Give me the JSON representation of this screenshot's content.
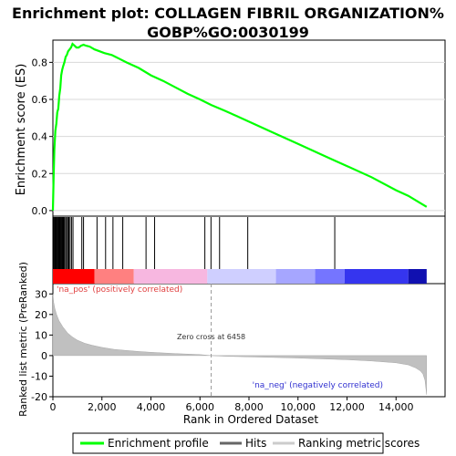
{
  "chart_data": {
    "type": "line",
    "title": "Enrichment plot: COLLAGEN FIBRIL ORGANIZATION%GOBP%GO:0030199",
    "title_lines": [
      "Enrichment plot: COLLAGEN FIBRIL ORGANIZATION%",
      "GOBP%GO:0030199"
    ],
    "panels": {
      "enrichment": {
        "ylabel": "Enrichment score (ES)",
        "ylim": [
          -0.03,
          0.92
        ],
        "yticks": [
          0.0,
          0.2,
          0.4,
          0.6,
          0.8
        ],
        "ytick_labels": [
          "0.0",
          "0.2",
          "0.4",
          "0.6",
          "0.8"
        ],
        "grid": true,
        "series": [
          {
            "name": "Enrichment profile",
            "color": "#00ff00",
            "x": [
              0,
              30,
              60,
              100,
              140,
              180,
              220,
              260,
              300,
              340,
              380,
              420,
              470,
              520,
              570,
              620,
              680,
              740,
              800,
              880,
              960,
              1050,
              1150,
              1250,
              1350,
              1500,
              1700,
              1900,
              2100,
              2400,
              2700,
              3000,
              3500,
              4000,
              4500,
              5000,
              5500,
              6000,
              6458,
              7000,
              7500,
              8000,
              9000,
              10000,
              11000,
              11500,
              12000,
              13000,
              14000,
              14500,
              15000,
              15250
            ],
            "values": [
              0.0,
              0.18,
              0.33,
              0.43,
              0.47,
              0.53,
              0.55,
              0.62,
              0.66,
              0.73,
              0.76,
              0.78,
              0.8,
              0.83,
              0.84,
              0.86,
              0.87,
              0.88,
              0.9,
              0.89,
              0.88,
              0.88,
              0.89,
              0.895,
              0.89,
              0.885,
              0.87,
              0.86,
              0.85,
              0.84,
              0.82,
              0.8,
              0.77,
              0.73,
              0.7,
              0.665,
              0.63,
              0.6,
              0.57,
              0.54,
              0.51,
              0.48,
              0.42,
              0.36,
              0.3,
              0.27,
              0.24,
              0.18,
              0.11,
              0.08,
              0.04,
              0.02
            ]
          }
        ]
      },
      "hits": {
        "name": "Hits",
        "positions": [
          20,
          50,
          80,
          110,
          140,
          170,
          200,
          230,
          260,
          290,
          320,
          350,
          380,
          410,
          440,
          470,
          520,
          560,
          610,
          650,
          700,
          760,
          820,
          1180,
          1250,
          1800,
          2150,
          2450,
          2850,
          3800,
          4150,
          6200,
          6450,
          6800,
          7950,
          11500
        ]
      },
      "ranked_metric": {
        "name": "Ranking metric scores",
        "ylabel": "Ranked list metric (PreRanked)",
        "ylim": [
          -20,
          35
        ],
        "yticks": [
          -20,
          -10,
          0,
          10,
          20,
          30
        ],
        "ytick_labels": [
          "-20",
          "-10",
          "0",
          "10",
          "20",
          "30"
        ],
        "x": [
          0,
          30,
          80,
          150,
          250,
          400,
          600,
          800,
          1000,
          1300,
          1600,
          2000,
          2500,
          3000,
          3500,
          4000,
          5000,
          6000,
          6458,
          7000,
          8000,
          9000,
          10000,
          11000,
          12000,
          13000,
          14000,
          14500,
          14800,
          15000,
          15100,
          15180,
          15250
        ],
        "values": [
          30,
          26,
          23,
          20,
          17,
          14,
          11,
          9,
          7.5,
          6,
          5,
          4,
          3,
          2.5,
          2,
          1.6,
          1,
          0.5,
          0,
          -0.3,
          -0.6,
          -0.9,
          -1.2,
          -1.6,
          -2,
          -2.6,
          -3.5,
          -4.5,
          -6,
          -7.5,
          -9,
          -12,
          -19
        ],
        "zero_cross_label": "Zero cross at 6458",
        "zero_cross_x": 6458,
        "pos_label": "'na_pos' (positively correlated)",
        "neg_label": "'na_neg' (negatively correlated)"
      }
    },
    "xlabel": "Rank in Ordered Dataset",
    "xlim": [
      0,
      16000
    ],
    "xticks": [
      0,
      2000,
      4000,
      6000,
      8000,
      10000,
      12000,
      14000
    ],
    "xtick_labels": [
      "0",
      "2,000",
      "4,000",
      "6,000",
      "8,000",
      "10,000",
      "12,000",
      "14,000"
    ],
    "heatmap_bar": {
      "segments": [
        {
          "start": 0,
          "end": 1700,
          "color": "#ff0000"
        },
        {
          "start": 1700,
          "end": 3300,
          "color": "#ff8080"
        },
        {
          "start": 3300,
          "end": 6300,
          "color": "#f7b7e0"
        },
        {
          "start": 6300,
          "end": 9100,
          "color": "#cfcfff"
        },
        {
          "start": 9100,
          "end": 10700,
          "color": "#a6a6ff"
        },
        {
          "start": 10700,
          "end": 11900,
          "color": "#7575ff"
        },
        {
          "start": 11900,
          "end": 14500,
          "color": "#3535ef"
        },
        {
          "start": 14500,
          "end": 15250,
          "color": "#1010b0"
        }
      ]
    },
    "legend": {
      "placement": "bottom",
      "entries": [
        {
          "label": "Enrichment profile",
          "color": "#00ff00"
        },
        {
          "label": "Hits",
          "color": "#666666"
        },
        {
          "label": "Ranking metric scores",
          "color": "#cccccc"
        }
      ]
    }
  }
}
